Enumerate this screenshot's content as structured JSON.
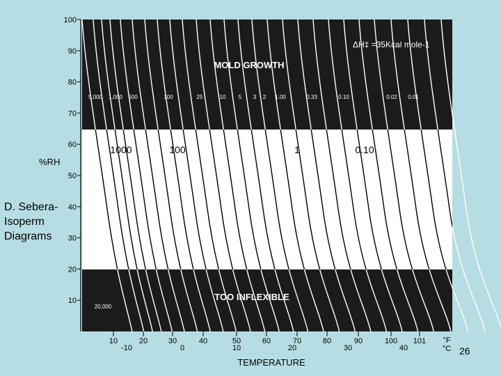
{
  "chart_data": {
    "type": "line",
    "title": "",
    "ylabel": "%RH",
    "xlabel": "TEMPERATURE",
    "ylim": [
      0,
      100
    ],
    "y_ticks": [
      "100",
      "90",
      "80",
      "70",
      "60",
      "50",
      "40",
      "30",
      "20",
      "10"
    ],
    "x_ticks_f": [
      "10",
      "20",
      "30",
      "40",
      "50",
      "60",
      "70",
      "80",
      "90",
      "100",
      "101"
    ],
    "x_ticks_c": [
      "-10",
      "0",
      "10",
      "20",
      "30",
      "40"
    ],
    "x_unit_f": "°F",
    "x_unit_c": "°C",
    "enthalpy_label": "ΔH‡ =35Kcal mole-1",
    "bands": {
      "upper": {
        "label": "MOLD GROWTH",
        "from_rh": 65,
        "to_rh": 100,
        "color": "#1b1b1b"
      },
      "middle": {
        "from_rh": 20,
        "to_rh": 65,
        "color": "#ffffff"
      },
      "lower": {
        "label": "TOO INFLEXIBLE",
        "from_rh": 0,
        "to_rh": 20,
        "color": "#1b1b1b"
      }
    },
    "series_labels_top": [
      "5,000",
      "1,000",
      "500",
      "100",
      "25",
      "10",
      "5",
      "3",
      "2",
      "1.00",
      "0.33",
      "0.10",
      "0.02",
      "0.01"
    ],
    "series_labels_bottom": [
      "20,000"
    ],
    "highlight_labels": [
      "1000",
      "100",
      "1",
      "0.10"
    ],
    "line_color": "#ffffff",
    "line_color_middle": "#000000"
  },
  "side_label_lines": [
    "D. Sebera-",
    "Isoperm",
    "Diagrams"
  ],
  "page_number": "26"
}
